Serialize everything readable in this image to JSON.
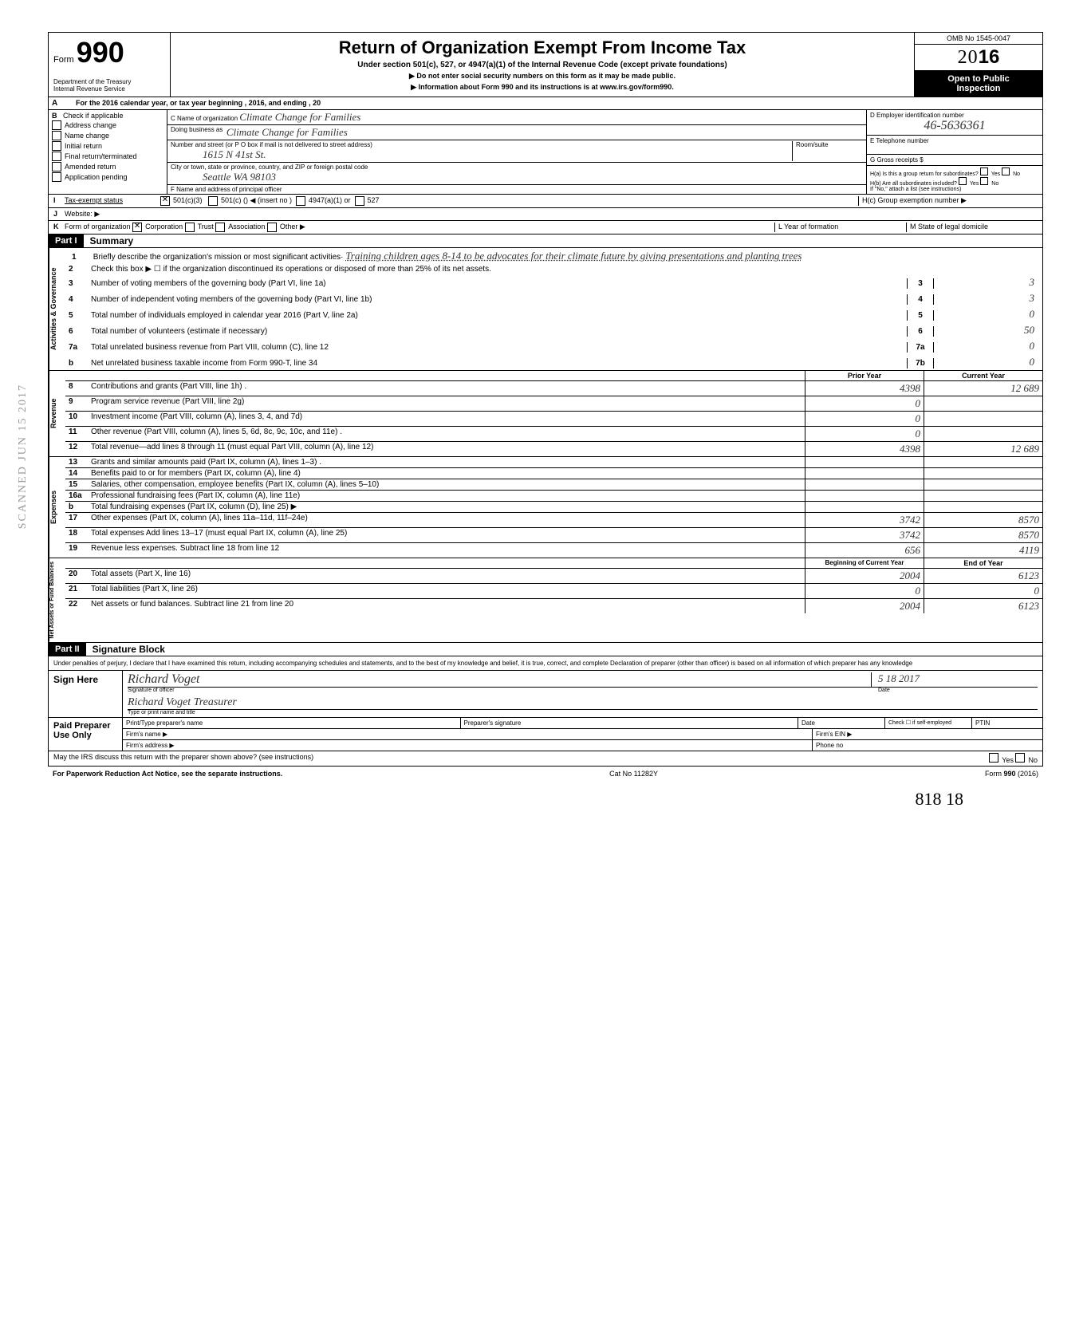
{
  "form": {
    "number_prefix": "Form",
    "number": "990",
    "title": "Return of Organization Exempt From Income Tax",
    "subtitle": "Under section 501(c), 527, or 4947(a)(1) of the Internal Revenue Code (except private foundations)",
    "ssn_warning": "▶ Do not enter social security numbers on this form as it may be made public.",
    "info_line": "▶ Information about Form 990 and its instructions is at www.irs.gov/form990.",
    "dept1": "Department of the Treasury",
    "dept2": "Internal Revenue Service",
    "omb": "OMB No 1545-0047",
    "year_outline": "20",
    "year_solid": "16",
    "open_public1": "Open to Public",
    "open_public2": "Inspection"
  },
  "line_a": "For the 2016 calendar year, or tax year beginning                                          , 2016, and ending                                                    , 20",
  "section_b": {
    "label": "Check if applicable",
    "items": [
      "Address change",
      "Name change",
      "Initial return",
      "Final return/terminated",
      "Amended return",
      "Application pending"
    ]
  },
  "org": {
    "c_label": "C Name of organization",
    "c_value": "Climate Change for Families",
    "dba_label": "Doing business as",
    "dba_value": "Climate Change for Families",
    "street_label": "Number and street (or P O box if mail is not delivered to street address)",
    "street_value": "1615 N 41st St.",
    "room_label": "Room/suite",
    "city_label": "City or town, state or province, country, and ZIP or foreign postal code",
    "city_value": "Seattle     WA    98103",
    "f_label": "F Name and address of principal officer"
  },
  "right": {
    "d_label": "D Employer identification number",
    "d_value": "46-5636361",
    "e_label": "E Telephone number",
    "g_label": "G Gross receipts $",
    "ha_label": "H(a) Is this a group return for subordinates?",
    "hb_label": "H(b) Are all subordinates included?",
    "h_note": "If \"No,\" attach a list (see instructions)",
    "hc_label": "H(c) Group exemption number ▶",
    "yes": "Yes",
    "no": "No"
  },
  "line_i": {
    "label": "Tax-exempt status",
    "opt1": "501(c)(3)",
    "opt2": "501(c) (",
    "opt2b": ") ◀ (insert no )",
    "opt3": "4947(a)(1) or",
    "opt4": "527"
  },
  "line_j": "Website: ▶",
  "line_k": {
    "label": "Form of organization",
    "opts": [
      "Corporation",
      "Trust",
      "Association",
      "Other ▶"
    ],
    "l_label": "L Year of formation",
    "m_label": "M State of legal domicile"
  },
  "part1": {
    "label": "Part I",
    "title": "Summary"
  },
  "mission": {
    "num": "1",
    "label": "Briefly describe the organization's mission or most significant activities·",
    "text": "Training children ages 8-14 to be advocates for their climate future by giving presentations and planting trees"
  },
  "gov_lines": [
    {
      "num": "2",
      "text": "Check this box ▶ ☐ if the organization discontinued its operations or disposed of more than 25% of its net assets."
    },
    {
      "num": "3",
      "text": "Number of voting members of the governing body (Part VI, line 1a)",
      "box": "3",
      "val": "3"
    },
    {
      "num": "4",
      "text": "Number of independent voting members of the governing body (Part VI, line 1b)",
      "box": "4",
      "val": "3"
    },
    {
      "num": "5",
      "text": "Total number of individuals employed in calendar year 2016 (Part V, line 2a)",
      "box": "5",
      "val": "0"
    },
    {
      "num": "6",
      "text": "Total number of volunteers (estimate if necessary)",
      "box": "6",
      "val": "50"
    },
    {
      "num": "7a",
      "text": "Total unrelated business revenue from Part VIII, column (C), line 12",
      "box": "7a",
      "val": "0"
    },
    {
      "num": "b",
      "text": "Net unrelated business taxable income from Form 990-T, line 34",
      "box": "7b",
      "val": "0"
    }
  ],
  "col_headers": {
    "prior": "Prior Year",
    "current": "Current Year"
  },
  "revenue_lines": [
    {
      "num": "8",
      "text": "Contributions and grants (Part VIII, line 1h) .",
      "prior": "4398",
      "current": "12 689"
    },
    {
      "num": "9",
      "text": "Program service revenue (Part VIII, line 2g)",
      "prior": "0",
      "current": ""
    },
    {
      "num": "10",
      "text": "Investment income (Part VIII, column (A), lines 3, 4, and 7d)",
      "prior": "0",
      "current": ""
    },
    {
      "num": "11",
      "text": "Other revenue (Part VIII, column (A), lines 5, 6d, 8c, 9c, 10c, and 11e) .",
      "prior": "0",
      "current": ""
    },
    {
      "num": "12",
      "text": "Total revenue—add lines 8 through 11 (must equal Part VIII, column (A), line 12)",
      "prior": "4398",
      "current": "12 689"
    }
  ],
  "expense_lines": [
    {
      "num": "13",
      "text": "Grants and similar amounts paid (Part IX, column (A), lines 1–3) .",
      "prior": "",
      "current": ""
    },
    {
      "num": "14",
      "text": "Benefits paid to or for members (Part IX, column (A), line 4)",
      "prior": "",
      "current": ""
    },
    {
      "num": "15",
      "text": "Salaries, other compensation, employee benefits (Part IX, column (A), lines 5–10)",
      "prior": "",
      "current": ""
    },
    {
      "num": "16a",
      "text": "Professional fundraising fees (Part IX, column (A), line 11e)",
      "prior": "",
      "current": ""
    },
    {
      "num": "b",
      "text": "Total fundraising expenses (Part IX, column (D), line 25) ▶",
      "prior": "",
      "current": ""
    },
    {
      "num": "17",
      "text": "Other expenses (Part IX, column (A), lines 11a–11d, 11f–24e)",
      "prior": "3742",
      "current": "8570"
    },
    {
      "num": "18",
      "text": "Total expenses  Add lines 13–17 (must equal Part IX, column (A), line 25)",
      "prior": "3742",
      "current": "8570"
    },
    {
      "num": "19",
      "text": "Revenue less expenses. Subtract line 18 from line 12",
      "prior": "656",
      "current": "4119"
    }
  ],
  "balance_headers": {
    "begin": "Beginning of Current Year",
    "end": "End of Year"
  },
  "balance_lines": [
    {
      "num": "20",
      "text": "Total assets (Part X, line 16)",
      "begin": "2004",
      "end": "6123"
    },
    {
      "num": "21",
      "text": "Total liabilities (Part X, line 26)",
      "begin": "0",
      "end": "0"
    },
    {
      "num": "22",
      "text": "Net assets or fund balances. Subtract line 21 from line 20",
      "begin": "2004",
      "end": "6123"
    }
  ],
  "part2": {
    "label": "Part II",
    "title": "Signature Block"
  },
  "sig": {
    "disclaimer": "Under penalties of perjury, I declare that I have examined this return, including accompanying schedules and statements, and to the best of my knowledge and belief, it is true, correct, and complete  Declaration of preparer (other than officer) is based on all information of which preparer has any knowledge",
    "sign_here": "Sign Here",
    "officer_sig": "Richard Voget",
    "officer_sig_label": "Signature of officer",
    "date": "5   18   2017",
    "date_label": "Date",
    "name_title": "Richard Voget        Treasurer",
    "name_title_label": "Type or print name and title",
    "paid_label": "Paid Preparer Use Only",
    "preparer_name_label": "Print/Type preparer's name",
    "preparer_sig_label": "Preparer's signature",
    "check_label": "Check ☐ if self-employed",
    "ptin_label": "PTIN",
    "firm_name": "Firm's name ▶",
    "firm_ein": "Firm's EIN ▶",
    "firm_addr": "Firm's address ▶",
    "phone": "Phone no",
    "irs_discuss": "May the IRS discuss this return with the preparer shown above? (see instructions)"
  },
  "footer": {
    "left": "For Paperwork Reduction Act Notice, see the separate instructions.",
    "center": "Cat No 11282Y",
    "right": "Form 990 (2016)"
  },
  "bottom_hand": "818    18",
  "scanned": "SCANNED JUN 15 2017",
  "vertical_labels": {
    "gov": "Activities & Governance",
    "rev": "Revenue",
    "exp": "Expenses",
    "bal": "Net Assets or Fund Balances"
  },
  "letters": {
    "a": "A",
    "b": "B",
    "i": "I",
    "j": "J",
    "k": "K"
  }
}
